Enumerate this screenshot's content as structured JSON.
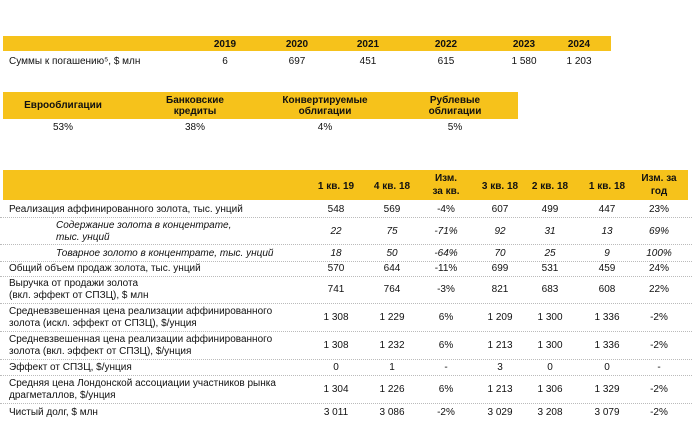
{
  "redemptions": {
    "years": [
      "2019",
      "2020",
      "2021",
      "2022",
      "2023",
      "2024"
    ],
    "label": "Суммы к погашению⁵, $ млн",
    "values": [
      "6",
      "697",
      "451",
      "615",
      "1 580",
      "1 203"
    ]
  },
  "debt_structure": {
    "headers": [
      [
        "Еврооблигации"
      ],
      [
        "Банковские",
        "кредиты"
      ],
      [
        "Конвертируемые",
        "облигации"
      ],
      [
        "Рублевые",
        "облигации"
      ]
    ],
    "values": [
      "53%",
      "38%",
      "4%",
      "5%"
    ]
  },
  "results": {
    "headers": [
      [
        "1 кв. 19"
      ],
      [
        "4 кв. 18"
      ],
      [
        "Изм.",
        "за кв."
      ],
      [
        "3 кв. 18"
      ],
      [
        "2 кв. 18"
      ],
      [
        "1 кв. 18"
      ],
      [
        "Изм. за",
        "год"
      ]
    ],
    "rows": [
      {
        "label": [
          "Реализация аффинированного золота, тыс. унций"
        ],
        "values": [
          "548",
          "569",
          "-4%",
          "607",
          "499",
          "447",
          "23%"
        ]
      },
      {
        "label": [
          "Содержание золота в концентрате,",
          "тыс. унций"
        ],
        "values": [
          "22",
          "75",
          "-71%",
          "92",
          "31",
          "13",
          "69%"
        ]
      },
      {
        "label": [
          "Товарное золото в концентрате, тыс. унций"
        ],
        "values": [
          "18",
          "50",
          "-64%",
          "70",
          "25",
          "9",
          "100%"
        ]
      },
      {
        "label": [
          "Общий объем продаж золота, тыс. унций"
        ],
        "values": [
          "570",
          "644",
          "-11%",
          "699",
          "531",
          "459",
          "24%"
        ]
      },
      {
        "label": [
          "Выручка от продажи золота",
          "(вкл. эффект от СПЗЦ), $ млн"
        ],
        "values": [
          "741",
          "764",
          "-3%",
          "821",
          "683",
          "608",
          "22%"
        ]
      },
      {
        "label": [
          "Средневзвешенная цена реализации аффинированного",
          "золота (искл. эффект от СПЗЦ), $/унция"
        ],
        "values": [
          "1 308",
          "1 229",
          "6%",
          "1 209",
          "1 300",
          "1 336",
          "-2%"
        ]
      },
      {
        "label": [
          "Средневзвешенная цена реализации аффинированного",
          "золота (вкл. эффект от СПЗЦ), $/унция"
        ],
        "values": [
          "1 308",
          "1 232",
          "6%",
          "1 213",
          "1 300",
          "1 336",
          "-2%"
        ]
      },
      {
        "label": [
          "Эффект от СПЗЦ, $/унция"
        ],
        "values": [
          "0",
          "1",
          "-",
          "3",
          "0",
          "0",
          "-"
        ]
      },
      {
        "label": [
          "Средняя цена Лондонской ассоциации участников рынка",
          "драгметаллов, $/унция"
        ],
        "values": [
          "1 304",
          "1 226",
          "6%",
          "1 213",
          "1 306",
          "1 329",
          "-2%"
        ]
      },
      {
        "label": [
          "Чистый долг, $ млн"
        ],
        "values": [
          "3 011",
          "3 086",
          "-2%",
          "3 029",
          "3 208",
          "3 079",
          "-2%"
        ]
      }
    ]
  }
}
